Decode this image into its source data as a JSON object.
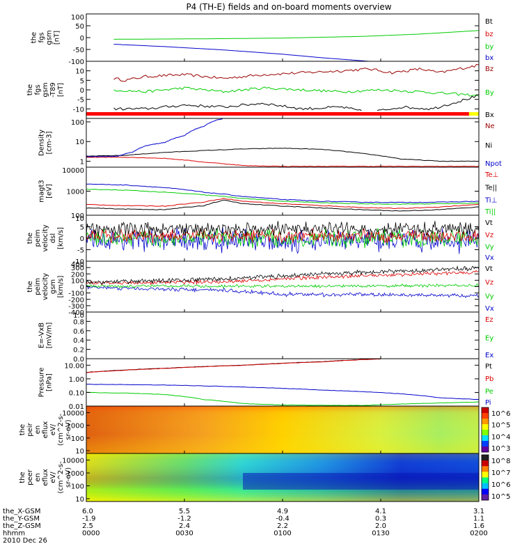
{
  "title": "P4 (TH-E) fields and on-board moments overview",
  "colors": {
    "black": "#000000",
    "red": "#dd0000",
    "green": "#00cc00",
    "blue": "#0000cc",
    "darkred": "#990000",
    "flag_red": "#ff0000",
    "flag_yellow": "#ffff00"
  },
  "chart_data": [
    {
      "type": "line",
      "id": "fgs_gsm",
      "ylabel": [
        "the",
        "fgs",
        "gsm",
        "[nT]"
      ],
      "ylim": [
        -100,
        100
      ],
      "yticks": [
        "100",
        "50",
        "0",
        "-50",
        "-100"
      ],
      "legend": [
        {
          "name": "Bt",
          "color": "#000000"
        },
        {
          "name": "bz",
          "color": "#dd0000"
        },
        {
          "name": "by",
          "color": "#00cc00"
        },
        {
          "name": "bx",
          "color": "#0000cc"
        }
      ],
      "series": [
        {
          "name": "by",
          "color": "#00cc00",
          "x": [
            0.07,
            0.3,
            0.5,
            0.7,
            0.85,
            1.0
          ],
          "y": [
            -7,
            -5,
            -2,
            5,
            15,
            30
          ]
        },
        {
          "name": "bx",
          "color": "#0000cc",
          "x": [
            0.07,
            0.2,
            0.35,
            0.5,
            0.6,
            0.72
          ],
          "y": [
            -28,
            -38,
            -52,
            -70,
            -85,
            -100
          ]
        }
      ]
    },
    {
      "type": "line",
      "id": "fgs_gsm_dt",
      "ylabel": [
        "the",
        "fgs",
        "gsm",
        "-T89",
        "[nT]"
      ],
      "ylim": [
        -15,
        15
      ],
      "yticks": [
        "10",
        "5",
        "0",
        "-5",
        "-10"
      ],
      "legend": [
        {
          "name": "Bz",
          "color": "#990000"
        },
        {
          "name": "By",
          "color": "#00cc00"
        },
        {
          "name": "Bx",
          "color": "#000000"
        }
      ],
      "series": [
        {
          "name": "Bz",
          "color": "#990000",
          "x": [
            0.07,
            0.1,
            0.15,
            0.25,
            0.35,
            0.45,
            0.55,
            0.65,
            0.72,
            0.78,
            0.85,
            0.9,
            1.0
          ],
          "y": [
            6,
            5,
            7,
            8,
            6,
            8,
            9,
            10,
            11,
            9,
            11,
            9,
            13
          ]
        },
        {
          "name": "By",
          "color": "#00cc00",
          "x": [
            0.07,
            0.15,
            0.25,
            0.35,
            0.45,
            0.55,
            0.65,
            0.75,
            0.85,
            1.0
          ],
          "y": [
            0,
            -1,
            1,
            -1,
            1,
            0,
            -1,
            0,
            -1,
            -3
          ]
        },
        {
          "name": "Bx",
          "color": "#000000",
          "x": [
            0.07,
            0.15,
            0.25,
            0.35,
            0.45,
            0.55,
            0.65,
            0.72,
            0.8,
            0.88,
            0.95,
            1.0
          ],
          "y": [
            -10,
            -10,
            -8,
            -9,
            -7,
            -10,
            -9,
            -12,
            -9,
            -10,
            -6,
            -3
          ]
        }
      ],
      "flag_bar": {
        "colors": [
          "#ff0000",
          "#ffff00"
        ],
        "split": 0.975
      }
    },
    {
      "type": "line",
      "id": "density",
      "ylabel": [
        "Density",
        "[cm-3]"
      ],
      "scale": "log",
      "ylim": [
        0.5,
        150
      ],
      "yticks": [
        "100",
        "10",
        "1"
      ],
      "legend": [
        {
          "name": "Ne",
          "color": "#990000"
        },
        {
          "name": "Ni",
          "color": "#000000"
        },
        {
          "name": "Npot",
          "color": "#0000cc"
        }
      ],
      "series": [
        {
          "name": "Ni",
          "color": "#000000",
          "x": [
            0,
            0.1,
            0.2,
            0.3,
            0.4,
            0.5,
            0.6,
            0.7,
            0.8,
            0.9,
            1.0
          ],
          "y": [
            1.8,
            2.0,
            2.8,
            3.5,
            4.2,
            4.6,
            4.0,
            2.5,
            1.3,
            1.0,
            1.0
          ]
        },
        {
          "name": "Ne",
          "color": "#dd0000",
          "x": [
            0,
            0.1,
            0.2,
            0.3,
            0.4,
            0.5,
            0.7,
            1.0
          ],
          "y": [
            1.6,
            1.6,
            1.4,
            0.9,
            0.6,
            0.55,
            0.55,
            0.55
          ]
        },
        {
          "name": "Npot",
          "color": "#0000cc",
          "x": [
            0,
            0.08,
            0.12,
            0.15,
            0.2,
            0.25,
            0.3,
            0.33,
            0.35
          ],
          "y": [
            1.7,
            1.8,
            3,
            6,
            9,
            20,
            60,
            120,
            150
          ]
        }
      ]
    },
    {
      "type": "line",
      "id": "magt3",
      "ylabel": [
        "magt3",
        "[eV]"
      ],
      "scale": "log",
      "ylim": [
        100,
        10000
      ],
      "yticks": [
        "10000",
        "1000",
        "100"
      ],
      "legend": [
        {
          "name": "Te⊥",
          "color": "#dd0000"
        },
        {
          "name": "Te||",
          "color": "#000000"
        },
        {
          "name": "Ti⊥",
          "color": "#0000cc"
        },
        {
          "name": "Ti||",
          "color": "#00cc00"
        }
      ],
      "series": [
        {
          "name": "Ti⊥",
          "color": "#0000cc",
          "x": [
            0,
            0.1,
            0.2,
            0.3,
            0.4,
            0.5,
            0.6,
            0.7,
            0.8,
            0.9,
            1.0
          ],
          "y": [
            2000,
            1800,
            1400,
            900,
            600,
            450,
            380,
            350,
            340,
            350,
            380
          ]
        },
        {
          "name": "Ti||",
          "color": "#00cc00",
          "x": [
            0,
            0.1,
            0.2,
            0.3,
            0.4,
            0.5,
            0.6,
            0.7,
            0.8,
            0.9,
            1.0
          ],
          "y": [
            1200,
            1100,
            900,
            700,
            500,
            380,
            330,
            300,
            290,
            300,
            320
          ]
        },
        {
          "name": "Te⊥",
          "color": "#dd0000",
          "x": [
            0,
            0.1,
            0.2,
            0.3,
            0.35,
            0.4,
            0.5,
            0.6,
            0.7,
            0.8,
            0.9,
            1.0
          ],
          "y": [
            280,
            250,
            240,
            350,
            500,
            380,
            300,
            250,
            210,
            190,
            220,
            280
          ]
        },
        {
          "name": "Te||",
          "color": "#000000",
          "x": [
            0,
            0.1,
            0.2,
            0.3,
            0.35,
            0.4,
            0.5,
            0.6,
            0.7,
            0.8,
            0.9,
            1.0
          ],
          "y": [
            200,
            180,
            170,
            250,
            420,
            300,
            240,
            200,
            170,
            150,
            170,
            220
          ]
        }
      ]
    },
    {
      "type": "line",
      "id": "peim_velocity_dsl",
      "ylabel": [
        "the",
        "peim",
        "velocity",
        "dsl",
        "[km/s]"
      ],
      "ylim": [
        -10,
        10
      ],
      "yticks": [
        "10",
        "5",
        "0",
        "-5",
        "-10"
      ],
      "legend": [
        {
          "name": "Vt",
          "color": "#000000"
        },
        {
          "name": "Vz",
          "color": "#dd0000"
        },
        {
          "name": "Vy",
          "color": "#00cc00"
        },
        {
          "name": "Vx",
          "color": "#0000cc"
        }
      ],
      "noise": [
        {
          "name": "Vx",
          "color": "#0000cc",
          "mean": -1,
          "amp": 5
        },
        {
          "name": "Vy",
          "color": "#00cc00",
          "mean": 0,
          "amp": 4
        },
        {
          "name": "Vz",
          "color": "#dd0000",
          "mean": 1,
          "amp": 3
        },
        {
          "name": "Vt",
          "color": "#000000",
          "mean": 4,
          "amp": 3
        }
      ]
    },
    {
      "type": "line",
      "id": "peim_velocity_gsm",
      "ylabel": [
        "the",
        "peim",
        "velocity",
        "gsm",
        "[km/s]"
      ],
      "ylim": [
        -400,
        400
      ],
      "yticks": [
        "400",
        "300",
        "200",
        "100",
        "0",
        "-100",
        "-200",
        "-300",
        "-400"
      ],
      "legend": [
        {
          "name": "Vt",
          "color": "#000000"
        },
        {
          "name": "Vz",
          "color": "#dd0000"
        },
        {
          "name": "Vy",
          "color": "#00cc00"
        },
        {
          "name": "Vx",
          "color": "#0000cc"
        }
      ],
      "noise": [
        {
          "name": "Vx",
          "color": "#0000cc",
          "x": [
            0,
            0.35,
            0.5,
            1.0
          ],
          "y": [
            -10,
            -60,
            -120,
            -140
          ],
          "amp": 30
        },
        {
          "name": "Vy",
          "color": "#00cc00",
          "x": [
            0,
            0.5,
            1.0
          ],
          "y": [
            10,
            5,
            20
          ],
          "amp": 25
        },
        {
          "name": "Vz",
          "color": "#dd0000",
          "x": [
            0,
            0.35,
            0.6,
            1.0
          ],
          "y": [
            50,
            80,
            150,
            230
          ],
          "amp": 30
        },
        {
          "name": "Vt",
          "color": "#000000",
          "x": [
            0,
            0.35,
            0.6,
            1.0
          ],
          "y": [
            60,
            120,
            200,
            290
          ],
          "amp": 35
        }
      ]
    },
    {
      "type": "line",
      "id": "efield",
      "ylabel": [
        "E=-VxB",
        "[mV/m]"
      ],
      "ylim": [
        0,
        1
      ],
      "yticks": [
        "1.0",
        "0.8",
        "0.6",
        "0.4",
        "0.2",
        "0.0"
      ],
      "legend": [
        {
          "name": "Ez",
          "color": "#dd0000"
        },
        {
          "name": "Ey",
          "color": "#00cc00"
        },
        {
          "name": "Ex",
          "color": "#0000cc"
        }
      ],
      "series": []
    },
    {
      "type": "line",
      "id": "pressure",
      "ylabel": [
        "Pressure",
        "[nPa]"
      ],
      "scale": "log",
      "ylim": [
        0.01,
        30
      ],
      "yticks": [
        "10.00",
        "1.00",
        "0.10",
        "0.01"
      ],
      "legend": [
        {
          "name": "Pt",
          "color": "#000000"
        },
        {
          "name": "Pb",
          "color": "#dd0000"
        },
        {
          "name": "Pe",
          "color": "#00cc00"
        },
        {
          "name": "Pi",
          "color": "#0000cc"
        }
      ],
      "series": [
        {
          "name": "Pt",
          "color": "#000000",
          "x": [
            0,
            0.2,
            0.4,
            0.6,
            0.75
          ],
          "y": [
            3,
            6,
            10,
            18,
            30
          ]
        },
        {
          "name": "Pb",
          "color": "#dd0000",
          "x": [
            0,
            0.2,
            0.4,
            0.6,
            0.75
          ],
          "y": [
            2.9,
            5.8,
            9.8,
            17.5,
            29
          ]
        },
        {
          "name": "Pi",
          "color": "#0000cc",
          "x": [
            0,
            0.2,
            0.4,
            0.6,
            0.8,
            0.9,
            1.0
          ],
          "y": [
            0.4,
            0.35,
            0.25,
            0.15,
            0.08,
            0.04,
            0.03
          ]
        },
        {
          "name": "Pe",
          "color": "#00cc00",
          "x": [
            0,
            0.1,
            0.2,
            0.3,
            0.4,
            0.5,
            0.7,
            1.0
          ],
          "y": [
            0.1,
            0.09,
            0.07,
            0.03,
            0.015,
            0.012,
            0.011,
            0.02
          ]
        }
      ]
    },
    {
      "type": "heatmap",
      "id": "peir_eflux",
      "ylabel": [
        "the",
        "peir",
        "en",
        "eflux",
        "eV/",
        "(cm^2-s-",
        "sr-eV)"
      ],
      "yticks": [
        "10000",
        "1000",
        "100",
        "10"
      ],
      "colorbar": [
        "10^6",
        "10^5",
        "10^4",
        "10^3"
      ]
    },
    {
      "type": "heatmap",
      "id": "peer_eflux",
      "ylabel": [
        "the",
        "peer",
        "en",
        "eflux",
        "eV/",
        "(cm^2-s-",
        "sr-eV)"
      ],
      "yticks": [
        "10000",
        "1000",
        "100",
        "10"
      ],
      "colorbar": [
        "10^8",
        "10^7",
        "10^6",
        "10^5"
      ]
    }
  ],
  "xaxis": {
    "rows": [
      {
        "label": "the_X-GSM",
        "values": [
          "6.0",
          "5.5",
          "4.9",
          "4.1",
          "3.1"
        ]
      },
      {
        "label": "the_Y-GSM",
        "values": [
          "-1.9",
          "-1.2",
          "-0.4",
          "0.3",
          "1.1"
        ]
      },
      {
        "label": "the_Z-GSM",
        "values": [
          "2.5",
          "2.4",
          "2.2",
          "2.0",
          "1.6"
        ]
      },
      {
        "label": "hhmm",
        "values": [
          "0000",
          "0030",
          "0100",
          "0130",
          "0200"
        ]
      }
    ],
    "date": "2010 Dec 26"
  }
}
